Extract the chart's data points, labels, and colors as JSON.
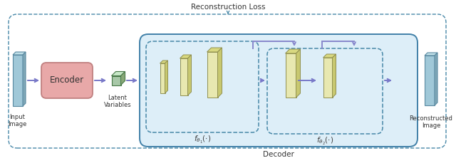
{
  "fig_width": 6.4,
  "fig_height": 2.36,
  "dpi": 100,
  "bg_color": "#ffffff",
  "arrow_color": "#7878c8",
  "encoder_color": "#e8a8a8",
  "encoder_edge": "#c08080",
  "layer_face": "#e8e8b0",
  "layer_side": "#c8c870",
  "layer_top": "#d8d880",
  "panel_face": "#a0c8d8",
  "panel_side": "#80a8b8",
  "panel_top": "#c0e0e8",
  "latent_face": "#a8c8a8",
  "latent_side": "#88a878",
  "latent_top": "#c8e8c8",
  "decoder_box_face": "#ddeef8",
  "decoder_box_edge": "#4080a8",
  "dashed_edge": "#4888a8",
  "skip_color": "#8888cc",
  "recon_loss_text": "Reconstruction Loss",
  "encoder_text": "Encoder",
  "latent_text": "Latent\nVariables",
  "decoder_text": "Decoder",
  "input_text": "Input\nImage",
  "recon_text": "Reconstructed\nImage",
  "f_theta1_text": "$f_{\\theta_1}(\\cdot)$",
  "f_theta2_text": "$f_{\\theta_2}(\\cdot)$"
}
